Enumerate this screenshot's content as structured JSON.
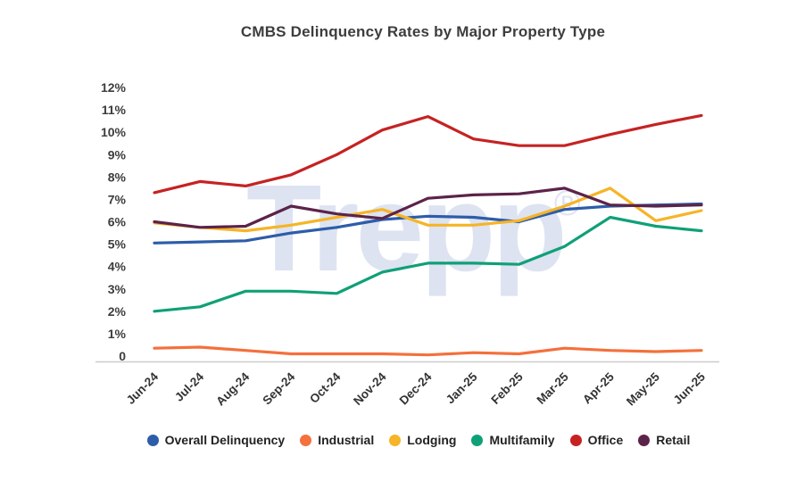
{
  "page": {
    "background_color": "#ffffff"
  },
  "header": {
    "title": "CMBS Delinquency Rates by Major Property Type"
  },
  "watermark": {
    "text": "Trepp",
    "registered_mark": "®",
    "color": "#dde3f1"
  },
  "axes": {
    "y_tick_labels": [
      "0",
      "1%",
      "2%",
      "3%",
      "4%",
      "5%",
      "6%",
      "7%",
      "8%",
      "9%",
      "10%",
      "11%",
      "12%"
    ],
    "x_tick_labels": [
      "Jun-24",
      "Jul-24",
      "Aug-24",
      "Sep-24",
      "Oct-24",
      "Nov-24",
      "Dec-24",
      "Jan-25",
      "Feb-25",
      "Mar-25",
      "Apr-25",
      "May-25",
      "Jun-25"
    ],
    "axis_line_color": "#cccccc",
    "tick_label_color": "#3d3d3d"
  },
  "chart_data": {
    "type": "line",
    "title": "CMBS Delinquency Rates by Major Property Type",
    "xlabel": "",
    "ylabel": "",
    "ylim": [
      0,
      12
    ],
    "y_tick_step_percent": 1,
    "grid": false,
    "legend_position": "bottom",
    "x_label_rotation_degrees": -45,
    "categories": [
      "Jun-24",
      "Jul-24",
      "Aug-24",
      "Sep-24",
      "Oct-24",
      "Nov-24",
      "Dec-24",
      "Jan-25",
      "Feb-25",
      "Mar-25",
      "Apr-25",
      "May-25",
      "Jun-25"
    ],
    "series": [
      {
        "name": "Overall Delinquency",
        "color": "#2d5da9",
        "values": [
          5.05,
          5.1,
          5.15,
          5.5,
          5.75,
          6.1,
          6.25,
          6.2,
          6.0,
          6.55,
          6.7,
          6.75,
          6.8
        ]
      },
      {
        "name": "Industrial",
        "color": "#f4703c",
        "values": [
          0.35,
          0.4,
          0.25,
          0.1,
          0.1,
          0.1,
          0.05,
          0.15,
          0.1,
          0.35,
          0.25,
          0.2,
          0.25
        ]
      },
      {
        "name": "Lodging",
        "color": "#f6b426",
        "values": [
          5.95,
          5.75,
          5.6,
          5.85,
          6.2,
          6.55,
          5.85,
          5.85,
          6.05,
          6.7,
          7.5,
          6.05,
          6.5
        ]
      },
      {
        "name": "Multifamily",
        "color": "#10a077",
        "values": [
          2.0,
          2.2,
          2.9,
          2.9,
          2.8,
          3.75,
          4.15,
          4.15,
          4.1,
          4.9,
          6.2,
          5.8,
          5.6
        ]
      },
      {
        "name": "Office",
        "color": "#c62222",
        "values": [
          7.3,
          7.8,
          7.6,
          8.1,
          9.0,
          10.1,
          10.7,
          9.7,
          9.4,
          9.4,
          9.9,
          10.35,
          10.75
        ]
      },
      {
        "name": "Retail",
        "color": "#5c2349",
        "values": [
          6.0,
          5.75,
          5.8,
          6.7,
          6.35,
          6.15,
          7.05,
          7.2,
          7.25,
          7.5,
          6.75,
          6.7,
          6.75
        ]
      }
    ]
  }
}
